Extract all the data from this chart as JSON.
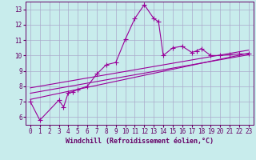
{
  "title": "",
  "xlabel": "Windchill (Refroidissement éolien,°C)",
  "ylabel": "",
  "bg_color": "#c8ecec",
  "line_color": "#990099",
  "grid_color": "#aaaacc",
  "text_color": "#660066",
  "xlim": [
    -0.5,
    23.5
  ],
  "ylim": [
    5.5,
    13.5
  ],
  "yticks": [
    6,
    7,
    8,
    9,
    10,
    11,
    12,
    13
  ],
  "xticks": [
    0,
    1,
    2,
    3,
    4,
    5,
    6,
    7,
    8,
    9,
    10,
    11,
    12,
    13,
    14,
    15,
    16,
    17,
    18,
    19,
    20,
    21,
    22,
    23
  ],
  "data_line": [
    [
      0,
      7.0
    ],
    [
      1,
      5.8
    ],
    [
      3,
      7.1
    ],
    [
      3.5,
      6.65
    ],
    [
      4,
      7.6
    ],
    [
      4.5,
      7.65
    ],
    [
      5,
      7.8
    ],
    [
      6,
      8.0
    ],
    [
      7,
      8.8
    ],
    [
      8,
      9.4
    ],
    [
      9,
      9.55
    ],
    [
      10,
      11.05
    ],
    [
      11,
      12.4
    ],
    [
      12,
      13.3
    ],
    [
      13,
      12.4
    ],
    [
      13.5,
      12.2
    ],
    [
      14,
      10.0
    ],
    [
      15,
      10.5
    ],
    [
      16,
      10.6
    ],
    [
      17,
      10.2
    ],
    [
      17.5,
      10.3
    ],
    [
      18,
      10.45
    ],
    [
      19,
      10.0
    ],
    [
      20,
      10.0
    ],
    [
      21,
      10.05
    ],
    [
      22,
      10.1
    ],
    [
      23,
      10.1
    ]
  ],
  "regression_line1": [
    [
      0,
      7.15
    ],
    [
      23,
      10.15
    ]
  ],
  "regression_line2": [
    [
      0,
      7.55
    ],
    [
      23,
      10.05
    ]
  ],
  "regression_line3": [
    [
      0,
      7.9
    ],
    [
      23,
      10.35
    ]
  ]
}
